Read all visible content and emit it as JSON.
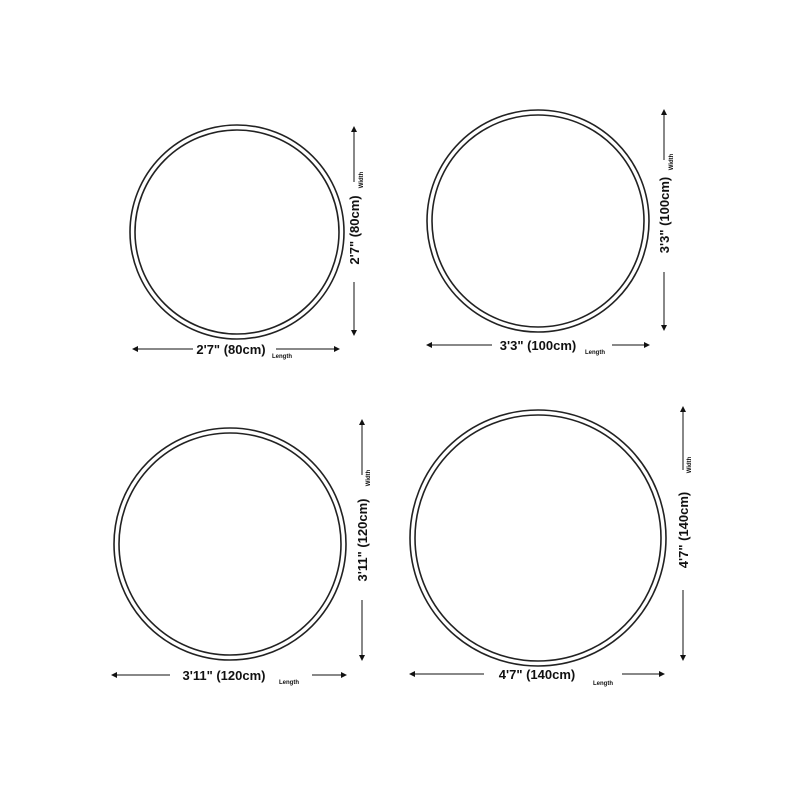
{
  "sizes": [
    {
      "length_label": "2'7\" (80cm)",
      "width_label": "2'7\" (80cm)",
      "length_caption": "Length",
      "width_caption": "Width"
    },
    {
      "length_label": "3'3\" (100cm)",
      "width_label": "3'3\" (100cm)",
      "length_caption": "Length",
      "width_caption": "Width"
    },
    {
      "length_label": "3'11\" (120cm)",
      "width_label": "3'11\" (120cm)",
      "length_caption": "Length",
      "width_caption": "Width"
    },
    {
      "length_label": "4'7\" (140cm)",
      "width_label": "4'7\" (140cm)",
      "length_caption": "Length",
      "width_caption": "Width"
    }
  ],
  "colors": {
    "line": "#222222",
    "background": "#ffffff"
  }
}
